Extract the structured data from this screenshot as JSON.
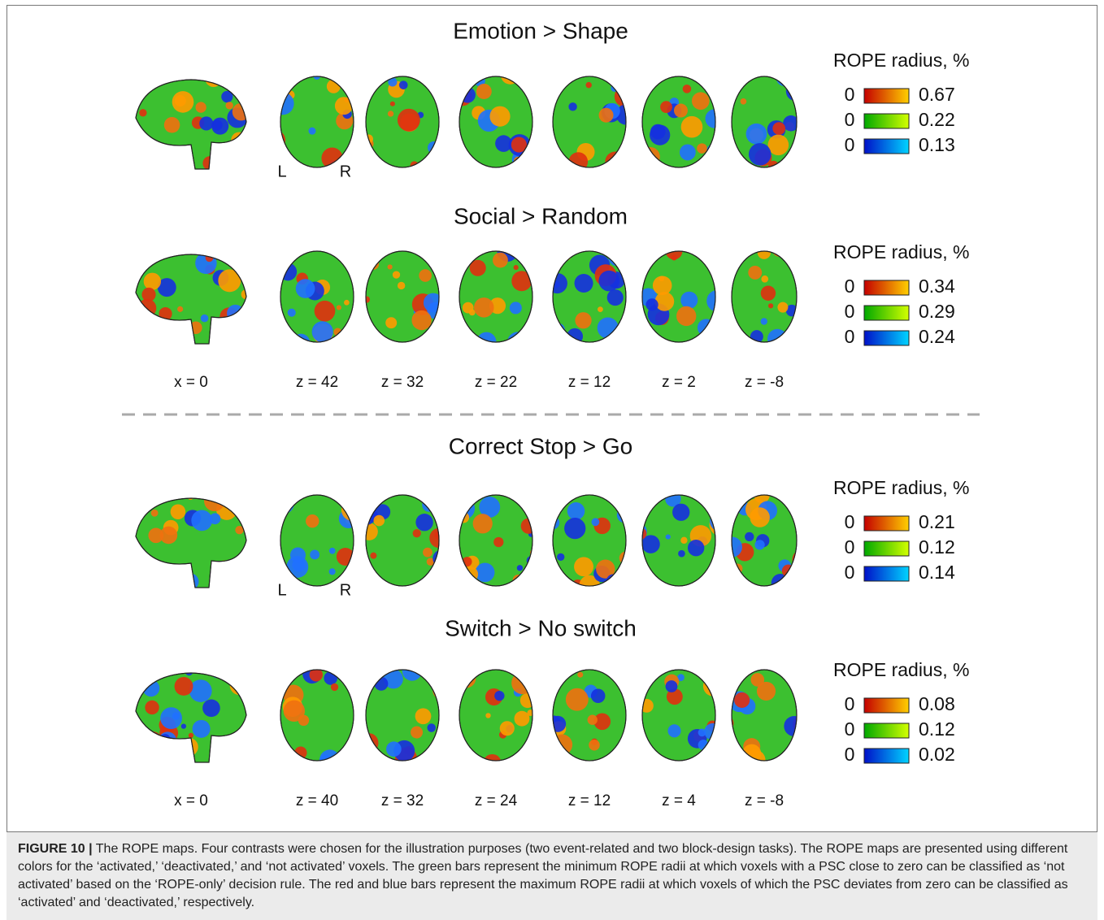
{
  "panels": [
    {
      "title": "Emotion > Shape",
      "legend": {
        "title": "ROPE radius, %",
        "rows": [
          {
            "min": "0",
            "max": "0.67"
          },
          {
            "min": "0",
            "max": "0.22"
          },
          {
            "min": "0",
            "max": "0.13"
          }
        ]
      },
      "side_labels": [
        "L",
        "R"
      ]
    },
    {
      "title": "Social > Random",
      "legend": {
        "title": "ROPE radius, %",
        "rows": [
          {
            "min": "0",
            "max": "0.34"
          },
          {
            "min": "0",
            "max": "0.29"
          },
          {
            "min": "0",
            "max": "0.24"
          }
        ]
      },
      "slice_labels": [
        "x = 0",
        "z = 42",
        "z = 32",
        "z = 22",
        "z = 12",
        "z = 2",
        "z = -8"
      ]
    },
    {
      "title": "Correct Stop > Go",
      "legend": {
        "title": "ROPE radius, %",
        "rows": [
          {
            "min": "0",
            "max": "0.21"
          },
          {
            "min": "0",
            "max": "0.12"
          },
          {
            "min": "0",
            "max": "0.14"
          }
        ]
      },
      "side_labels": [
        "L",
        "R"
      ]
    },
    {
      "title": "Switch > No switch",
      "legend": {
        "title": "ROPE radius, %",
        "rows": [
          {
            "min": "0",
            "max": "0.08"
          },
          {
            "min": "0",
            "max": "0.12"
          },
          {
            "min": "0",
            "max": "0.02"
          }
        ]
      },
      "slice_labels": [
        "x = 0",
        "z = 40",
        "z = 32",
        "z = 24",
        "z = 12",
        "z = 4",
        "z = -8"
      ]
    }
  ],
  "caption": {
    "label": "FIGURE 10 |",
    "text": "The ROPE maps. Four contrasts were chosen for the illustration purposes (two event-related and two block-design tasks). The ROPE maps are presented using different colors for the ‘activated,’ ‘deactivated,’ and ‘not activated’ voxels. The green bars represent the minimum ROPE radii at which voxels with a PSC close to zero can be classified as ‘not activated’ based on the ‘ROPE-only’ decision rule. The red and blue bars represent the maximum ROPE radii at which voxels of which the PSC deviates from zero can be classified as ‘activated’ and ‘deactivated,’ respectively."
  }
}
